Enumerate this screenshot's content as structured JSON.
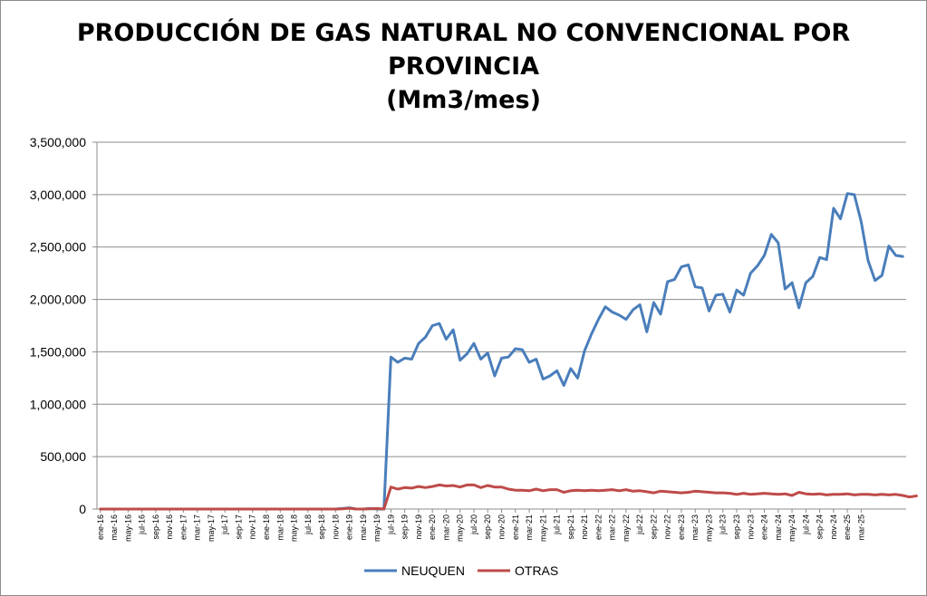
{
  "chart_data": {
    "type": "line",
    "title_lines": [
      "PRODUCCIÓN DE GAS NATURAL NO CONVENCIONAL POR",
      "PROVINCIA",
      "(Mm3/mes)"
    ],
    "ylim": [
      0,
      3500000
    ],
    "y_ticks": [
      "0",
      "500,000",
      "1,000,000",
      "1,500,000",
      "2,000,000",
      "2,500,000",
      "3,000,000",
      "3,500,000"
    ],
    "y_tick_values": [
      0,
      500000,
      1000000,
      1500000,
      2000000,
      2500000,
      3000000,
      3500000
    ],
    "grid": true,
    "legend_position": "bottom",
    "x_labels": [
      "ene-16",
      "mar-16",
      "may-16",
      "jul-16",
      "sep-16",
      "nov-16",
      "ene-17",
      "mar-17",
      "may-17",
      "jul-17",
      "sep-17",
      "nov-17",
      "ene-18",
      "mar-18",
      "may-18",
      "jul-18",
      "sep-18",
      "nov-18",
      "ene-19",
      "mar-19",
      "may-19",
      "jul-19",
      "sep-19",
      "nov-19",
      "ene-20",
      "mar-20",
      "may-20",
      "jul-20",
      "sep-20",
      "nov-20",
      "ene-21",
      "mar-21",
      "may-21",
      "jul-21",
      "sep-21",
      "nov-21",
      "ene-22",
      "mar-22",
      "may-22",
      "jul-22",
      "sep-22",
      "nov-22",
      "ene-23",
      "mar-23",
      "may-23",
      "jul-23",
      "sep-23",
      "nov-23",
      "ene-24",
      "mar-24",
      "may-24",
      "jul-24",
      "sep-24",
      "nov-24",
      "ene-25",
      "mar-25"
    ],
    "series": [
      {
        "name": "NEUQUEN",
        "color": "#4a7ebb",
        "values": [
          0,
          0,
          0,
          0,
          0,
          0,
          0,
          0,
          0,
          0,
          0,
          0,
          0,
          0,
          0,
          0,
          0,
          0,
          0,
          0,
          0,
          0,
          0,
          0,
          0,
          0,
          0,
          0,
          0,
          0,
          0,
          0,
          0,
          0,
          0,
          5000,
          12000,
          0,
          0,
          5000,
          0,
          0,
          1450000,
          1400000,
          1440000,
          1430000,
          1580000,
          1640000,
          1750000,
          1770000,
          1620000,
          1710000,
          1420000,
          1480000,
          1580000,
          1430000,
          1490000,
          1270000,
          1440000,
          1450000,
          1530000,
          1520000,
          1400000,
          1430000,
          1240000,
          1270000,
          1320000,
          1180000,
          1340000,
          1250000,
          1510000,
          1670000,
          1810000,
          1930000,
          1880000,
          1850000,
          1810000,
          1900000,
          1950000,
          1690000,
          1970000,
          1860000,
          2170000,
          2190000,
          2310000,
          2330000,
          2120000,
          2110000,
          1890000,
          2040000,
          2050000,
          1880000,
          2090000,
          2040000,
          2250000,
          2320000,
          2420000,
          2620000,
          2540000,
          2100000,
          2160000,
          1920000,
          2160000,
          2220000,
          2400000,
          2380000,
          2870000,
          2770000,
          3010000,
          3000000,
          2740000,
          2370000,
          2180000,
          2230000,
          2510000,
          2420000,
          2410000
        ]
      },
      {
        "name": "OTRAS",
        "color": "#be4b48",
        "values": [
          0,
          0,
          0,
          0,
          0,
          0,
          0,
          0,
          0,
          0,
          0,
          0,
          0,
          0,
          0,
          0,
          0,
          0,
          0,
          0,
          0,
          0,
          0,
          0,
          0,
          0,
          0,
          0,
          0,
          0,
          0,
          0,
          0,
          0,
          0,
          3000,
          8000,
          0,
          0,
          3000,
          5000,
          0,
          210000,
          190000,
          205000,
          200000,
          215000,
          205000,
          215000,
          230000,
          220000,
          225000,
          210000,
          230000,
          230000,
          205000,
          225000,
          210000,
          210000,
          190000,
          180000,
          180000,
          175000,
          190000,
          175000,
          185000,
          185000,
          160000,
          175000,
          180000,
          175000,
          180000,
          175000,
          180000,
          185000,
          175000,
          185000,
          170000,
          175000,
          165000,
          155000,
          170000,
          165000,
          160000,
          155000,
          160000,
          170000,
          165000,
          160000,
          155000,
          155000,
          150000,
          140000,
          150000,
          140000,
          145000,
          150000,
          145000,
          140000,
          145000,
          130000,
          160000,
          145000,
          140000,
          145000,
          135000,
          140000,
          140000,
          145000,
          135000,
          140000,
          140000,
          135000,
          140000,
          135000,
          140000,
          130000,
          115000,
          125000
        ]
      }
    ]
  }
}
